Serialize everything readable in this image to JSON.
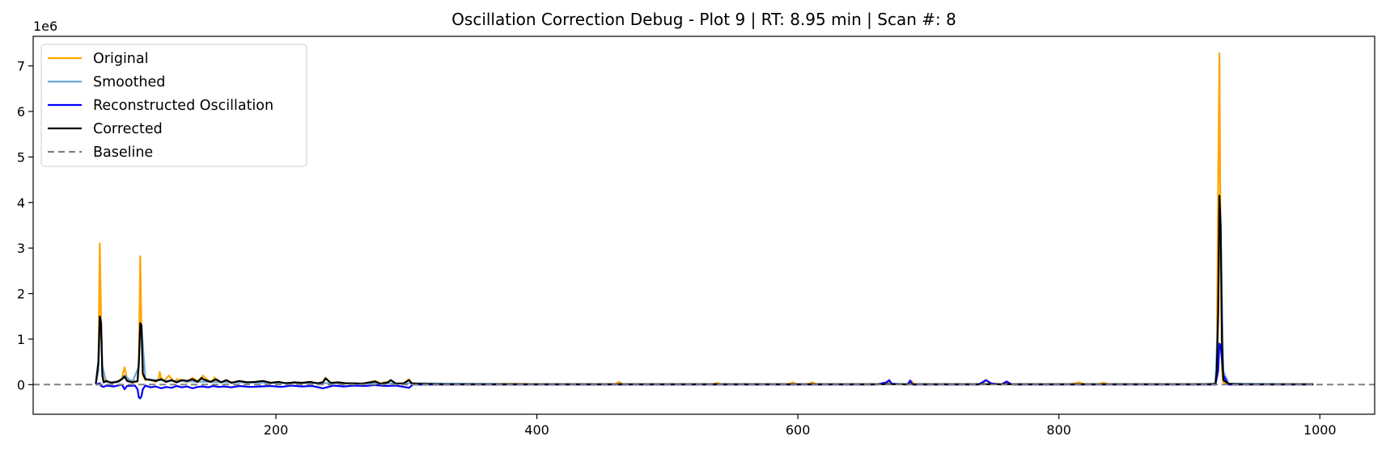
{
  "chart_data": {
    "type": "line",
    "title": "Oscillation Correction Debug - Plot 9 | RT: 8.95 min | Scan #: 8",
    "xlabel": "",
    "ylabel": "",
    "y_offset_label": "1e6",
    "xlim": [
      14,
      1042
    ],
    "ylim": [
      -0.65,
      7.65
    ],
    "x_ticks": [
      200,
      400,
      600,
      800,
      1000
    ],
    "x_tick_labels": [
      "200",
      "400",
      "600",
      "800",
      "1000"
    ],
    "y_ticks": [
      0,
      1,
      2,
      3,
      4,
      5,
      6,
      7
    ],
    "y_tick_labels": [
      "0",
      "1",
      "2",
      "3",
      "4",
      "5",
      "6",
      "7"
    ],
    "grid": false,
    "legend_position": "upper-left",
    "baseline": 0,
    "series": [
      {
        "name": "Original",
        "color": "#FFA500",
        "style": "solid",
        "x": [
          62,
          64,
          65,
          66,
          67,
          68,
          70,
          72,
          76,
          80,
          82,
          84,
          86,
          90,
          94,
          95,
          96,
          97,
          98,
          100,
          104,
          108,
          110,
          111,
          112,
          114,
          118,
          122,
          124,
          128,
          132,
          136,
          140,
          143,
          144,
          146,
          150,
          152,
          153,
          154,
          158,
          162,
          166,
          172,
          178,
          184,
          190,
          196,
          202,
          208,
          214,
          220,
          226,
          232,
          236,
          238,
          242,
          248,
          254,
          260,
          266,
          272,
          276,
          280,
          286,
          288,
          292,
          298,
          302,
          304,
          310,
          330,
          350,
          380,
          410,
          440,
          460,
          463,
          466,
          480,
          500,
          520,
          535,
          538,
          541,
          560,
          580,
          593,
          596,
          599,
          608,
          611,
          614,
          640,
          660,
          668,
          670,
          672,
          680,
          685,
          687,
          689,
          700,
          720,
          738,
          742,
          744,
          748,
          756,
          759,
          762,
          780,
          800,
          810,
          815,
          820,
          830,
          834,
          838,
          860,
          880,
          900,
          915,
          920,
          921,
          922,
          923,
          924,
          925,
          926,
          930,
          940,
          960,
          980,
          995
        ],
        "y": [
          0.02,
          0.3,
          3.1,
          1.5,
          0.3,
          0.06,
          0.1,
          0.05,
          0.06,
          0.08,
          0.15,
          0.38,
          0.12,
          0.08,
          0.06,
          0.4,
          2.82,
          1.1,
          0.2,
          0.1,
          0.12,
          0.06,
          0.1,
          0.28,
          0.15,
          0.08,
          0.2,
          0.06,
          0.12,
          0.1,
          0.05,
          0.15,
          0.08,
          0.12,
          0.2,
          0.14,
          0.06,
          0.1,
          0.16,
          0.08,
          0.05,
          0.1,
          0.04,
          0.08,
          0.05,
          0.06,
          0.08,
          0.04,
          0.06,
          0.03,
          0.05,
          0.04,
          0.06,
          0.03,
          0.06,
          0.15,
          0.04,
          0.05,
          0.03,
          0.03,
          0.02,
          0.05,
          0.08,
          0.03,
          0.06,
          0.1,
          0.02,
          0.03,
          0.12,
          0.03,
          0.02,
          0.01,
          0.01,
          0.02,
          0.01,
          0.01,
          0.01,
          0.06,
          0.01,
          0.01,
          0.01,
          0.01,
          0.01,
          0.04,
          0.01,
          0.01,
          0.01,
          0.01,
          0.05,
          0.01,
          0.01,
          0.05,
          0.01,
          0.01,
          0.01,
          0.01,
          0.06,
          0.01,
          0.01,
          0.01,
          0.08,
          0.01,
          0.01,
          0.01,
          0.01,
          0.02,
          0.1,
          0.02,
          0.01,
          0.06,
          0.01,
          0.01,
          0.01,
          0.01,
          0.05,
          0.01,
          0.01,
          0.04,
          0.01,
          0.01,
          0.01,
          0.01,
          0.01,
          0.02,
          0.5,
          4.2,
          7.28,
          2.5,
          0.3,
          0.05,
          0.02,
          0.01,
          0.01,
          0.01,
          0.01
        ]
      },
      {
        "name": "Smoothed",
        "color": "#6CA8DC",
        "style": "solid",
        "x": [
          62,
          64,
          65,
          66,
          67,
          70,
          80,
          84,
          90,
          95,
          96,
          97,
          100,
          120,
          150,
          200,
          250,
          300,
          400,
          500,
          600,
          700,
          800,
          900,
          920,
          922,
          923,
          924,
          926,
          930,
          995
        ],
        "y": [
          0.02,
          0.3,
          1.3,
          1.45,
          0.4,
          0.06,
          0.06,
          0.2,
          0.06,
          0.4,
          1.3,
          1.25,
          0.12,
          0.08,
          0.06,
          0.04,
          0.03,
          0.03,
          0.01,
          0.01,
          0.01,
          0.01,
          0.01,
          0.01,
          0.02,
          1.5,
          4.0,
          3.3,
          0.3,
          0.02,
          0.01
        ]
      },
      {
        "name": "Reconstructed Oscillation",
        "color": "#0000FF",
        "style": "solid",
        "x": [
          62,
          65,
          66,
          68,
          70,
          76,
          82,
          84,
          86,
          92,
          94,
          95,
          96,
          97,
          98,
          100,
          104,
          108,
          112,
          116,
          120,
          124,
          128,
          132,
          136,
          140,
          144,
          148,
          152,
          156,
          160,
          166,
          172,
          180,
          188,
          196,
          204,
          212,
          220,
          228,
          236,
          244,
          252,
          260,
          268,
          276,
          284,
          292,
          300,
          302,
          305,
          320,
          400,
          500,
          660,
          668,
          670,
          672,
          684,
          686,
          688,
          738,
          742,
          744,
          748,
          756,
          760,
          764,
          900,
          920,
          922,
          923,
          924,
          926,
          930,
          995
        ],
        "y": [
          0.0,
          0.03,
          -0.03,
          -0.05,
          -0.02,
          -0.04,
          0.0,
          -0.1,
          -0.03,
          -0.02,
          -0.1,
          -0.28,
          -0.3,
          -0.25,
          -0.1,
          -0.02,
          -0.06,
          -0.04,
          -0.08,
          -0.05,
          -0.07,
          -0.03,
          -0.06,
          -0.04,
          -0.08,
          -0.05,
          -0.04,
          -0.06,
          -0.03,
          -0.05,
          -0.04,
          -0.06,
          -0.03,
          -0.05,
          -0.04,
          -0.03,
          -0.05,
          -0.02,
          -0.04,
          -0.03,
          -0.08,
          -0.02,
          -0.04,
          -0.02,
          -0.03,
          -0.01,
          -0.03,
          -0.02,
          -0.06,
          -0.07,
          0.0,
          0.0,
          0.0,
          0.0,
          0.0,
          0.05,
          0.1,
          0.02,
          0.0,
          0.09,
          0.0,
          0.0,
          0.06,
          0.1,
          0.03,
          0.0,
          0.07,
          0.0,
          0.0,
          0.0,
          0.3,
          0.9,
          0.85,
          0.2,
          0.0,
          0.0
        ]
      },
      {
        "name": "Corrected",
        "color": "#000000",
        "style": "solid",
        "x": [
          62,
          64,
          65,
          66,
          67,
          68,
          70,
          74,
          78,
          82,
          84,
          86,
          90,
          94,
          95,
          96,
          97,
          98,
          100,
          104,
          108,
          112,
          116,
          120,
          124,
          128,
          132,
          136,
          140,
          143,
          144,
          146,
          150,
          154,
          158,
          162,
          166,
          172,
          178,
          184,
          190,
          196,
          202,
          208,
          214,
          220,
          226,
          232,
          236,
          238,
          242,
          248,
          254,
          260,
          266,
          272,
          276,
          280,
          286,
          288,
          292,
          298,
          302,
          304,
          310,
          330,
          350,
          380,
          410,
          440,
          470,
          500,
          540,
          580,
          620,
          660,
          700,
          740,
          780,
          820,
          860,
          900,
          915,
          920,
          921,
          922,
          923,
          924,
          925,
          926,
          930,
          940,
          960,
          980,
          995
        ],
        "y": [
          0.02,
          0.5,
          1.5,
          1.35,
          0.2,
          0.05,
          0.08,
          0.04,
          0.06,
          0.12,
          0.18,
          0.08,
          0.05,
          0.08,
          0.5,
          1.35,
          1.3,
          0.25,
          0.12,
          0.1,
          0.08,
          0.12,
          0.06,
          0.1,
          0.05,
          0.1,
          0.08,
          0.12,
          0.06,
          0.15,
          0.12,
          0.1,
          0.06,
          0.12,
          0.05,
          0.1,
          0.04,
          0.08,
          0.05,
          0.06,
          0.08,
          0.04,
          0.06,
          0.03,
          0.05,
          0.04,
          0.06,
          0.03,
          0.05,
          0.14,
          0.04,
          0.05,
          0.03,
          0.03,
          0.02,
          0.05,
          0.07,
          0.02,
          0.05,
          0.1,
          0.02,
          0.03,
          0.1,
          0.03,
          0.02,
          0.01,
          0.01,
          0.01,
          0.01,
          0.01,
          0.01,
          0.01,
          0.01,
          0.01,
          0.01,
          0.01,
          0.01,
          0.01,
          0.01,
          0.01,
          0.01,
          0.01,
          0.01,
          0.02,
          0.3,
          1.5,
          4.15,
          3.5,
          0.9,
          0.1,
          0.02,
          0.01,
          0.01,
          0.01,
          0.01
        ]
      },
      {
        "name": "Baseline",
        "color": "#808080",
        "style": "dashed",
        "x": [
          14,
          1042
        ],
        "y": [
          0,
          0
        ]
      }
    ]
  }
}
